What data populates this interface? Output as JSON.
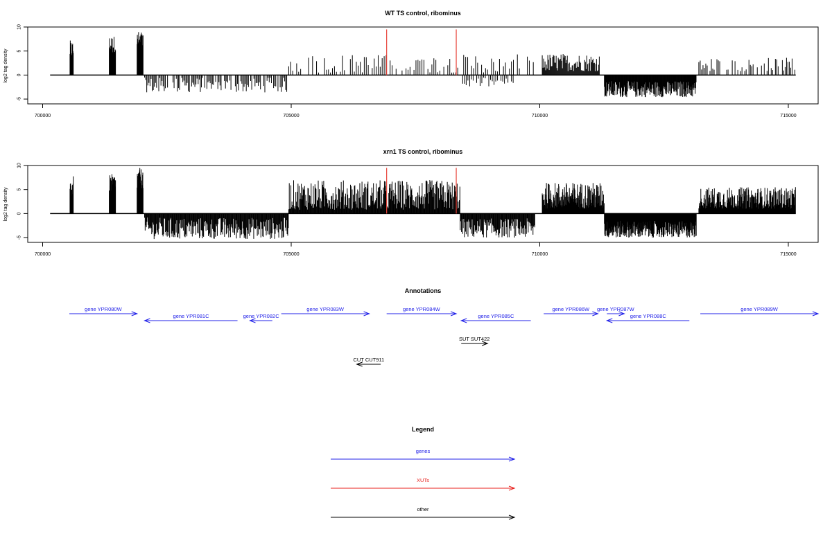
{
  "chart_data": [
    {
      "type": "bar",
      "title": "WT TS control, ribominus",
      "ylabel": "log2 tag density",
      "xlim": [
        699700,
        715600
      ],
      "ylim": [
        -6,
        10
      ],
      "x_ticks": [
        700000,
        705000,
        710000,
        715000
      ],
      "y_ticks": [
        -5,
        0,
        5,
        10
      ],
      "baseline": [
        700150,
        715150
      ],
      "highlight_color": "#e8443a",
      "highlights": [
        {
          "x": 706920,
          "y": 9.5
        },
        {
          "x": 708320,
          "y": 9.5
        }
      ],
      "series": [
        {
          "x_range": [
            700550,
            700620
          ],
          "y_min": 3.5,
          "y_max": 7.2,
          "step": 6
        },
        {
          "x_range": [
            701340,
            701470
          ],
          "y_min": 4.5,
          "y_max": 8.2,
          "step": 6
        },
        {
          "x_range": [
            701900,
            702020
          ],
          "y_min": 4.5,
          "y_max": 9.2,
          "step": 5
        },
        {
          "x_range": [
            702050,
            704950
          ],
          "y_min": -3.6,
          "y_max": -0.5,
          "step": 22
        },
        {
          "x_range": [
            704950,
            709900
          ],
          "y_min": 0.5,
          "y_max": 4.3,
          "step": 40
        },
        {
          "x_range": [
            708450,
            709500
          ],
          "y_min": -2.5,
          "y_max": -0.5,
          "step": 35
        },
        {
          "x_range": [
            710050,
            711200
          ],
          "y_min": 0.8,
          "y_max": 4.5,
          "step": 14
        },
        {
          "x_range": [
            711300,
            713150
          ],
          "y_min": -4.6,
          "y_max": -1.2,
          "step": 9
        },
        {
          "x_range": [
            713200,
            715150
          ],
          "y_min": 0.8,
          "y_max": 3.6,
          "step": 28
        }
      ]
    },
    {
      "type": "bar",
      "title": "xrn1 TS control, ribominus",
      "ylabel": "log2 tag density",
      "xlim": [
        699700,
        715600
      ],
      "ylim": [
        -6,
        10
      ],
      "x_ticks": [
        700000,
        705000,
        710000,
        715000
      ],
      "y_ticks": [
        -5,
        0,
        5,
        10
      ],
      "baseline": [
        700150,
        715150
      ],
      "highlight_color": "#e8443a",
      "highlights": [
        {
          "x": 706920,
          "y": 9.5
        },
        {
          "x": 708320,
          "y": 9.5
        }
      ],
      "series": [
        {
          "x_range": [
            700550,
            700620
          ],
          "y_min": 3.5,
          "y_max": 7.8,
          "step": 6
        },
        {
          "x_range": [
            701340,
            701470
          ],
          "y_min": 4.5,
          "y_max": 8.2,
          "step": 6
        },
        {
          "x_range": [
            701900,
            702020
          ],
          "y_min": 5.0,
          "y_max": 9.5,
          "step": 5
        },
        {
          "x_range": [
            702050,
            704950
          ],
          "y_min": -5.3,
          "y_max": -0.8,
          "step": 12
        },
        {
          "x_range": [
            704950,
            708400
          ],
          "y_min": 0.8,
          "y_max": 7.0,
          "step": 11
        },
        {
          "x_range": [
            708400,
            709900
          ],
          "y_min": -5.0,
          "y_max": -1.0,
          "step": 12
        },
        {
          "x_range": [
            710050,
            711300
          ],
          "y_min": 1.0,
          "y_max": 6.5,
          "step": 7
        },
        {
          "x_range": [
            711300,
            713150
          ],
          "y_min": -5.0,
          "y_max": -1.5,
          "step": 7
        },
        {
          "x_range": [
            713200,
            715150
          ],
          "y_min": 1.0,
          "y_max": 5.5,
          "step": 8
        }
      ]
    },
    {
      "type": "annotation-track",
      "title": "Annotations",
      "features": [
        {
          "label": "gene YPR080W",
          "start": 700450,
          "end": 701900,
          "strand": "+",
          "row": 0,
          "class": "gene"
        },
        {
          "label": "gene YPR081C",
          "start": 702050,
          "end": 703920,
          "strand": "-",
          "row": 1,
          "class": "gene"
        },
        {
          "label": "gene YPR082C",
          "start": 704170,
          "end": 704620,
          "strand": "-",
          "row": 1,
          "class": "gene"
        },
        {
          "label": "gene YPR083W",
          "start": 704800,
          "end": 706570,
          "strand": "+",
          "row": 0,
          "class": "gene"
        },
        {
          "label": "gene YPR084W",
          "start": 706920,
          "end": 708320,
          "strand": "+",
          "row": 0,
          "class": "gene"
        },
        {
          "label": "gene YPR085C",
          "start": 708420,
          "end": 709820,
          "strand": "-",
          "row": 1,
          "class": "gene"
        },
        {
          "label": "gene YPR086W",
          "start": 710080,
          "end": 711170,
          "strand": "+",
          "row": 0,
          "class": "gene"
        },
        {
          "label": "gene YPR087W",
          "start": 711350,
          "end": 711700,
          "strand": "+",
          "row": 0,
          "class": "gene"
        },
        {
          "label": "gene YPR088C",
          "start": 711350,
          "end": 713010,
          "strand": "-",
          "row": 1,
          "class": "gene"
        },
        {
          "label": "gene YPR089W",
          "start": 713230,
          "end": 715600,
          "strand": "+",
          "row": 0,
          "class": "gene"
        },
        {
          "label": "SUT SUT422",
          "start": 708420,
          "end": 708950,
          "strand": "+",
          "row": 3,
          "class": "other"
        },
        {
          "label": "CUT CUT911",
          "start": 706320,
          "end": 706800,
          "strand": "-",
          "row": 6,
          "class": "other"
        }
      ]
    },
    {
      "type": "legend",
      "title": "Legend",
      "items": [
        {
          "label": "genes",
          "color": "#2020e8"
        },
        {
          "label": "XUTs",
          "color": "#e8201c"
        },
        {
          "label": "other",
          "color": "#000000"
        }
      ]
    }
  ]
}
